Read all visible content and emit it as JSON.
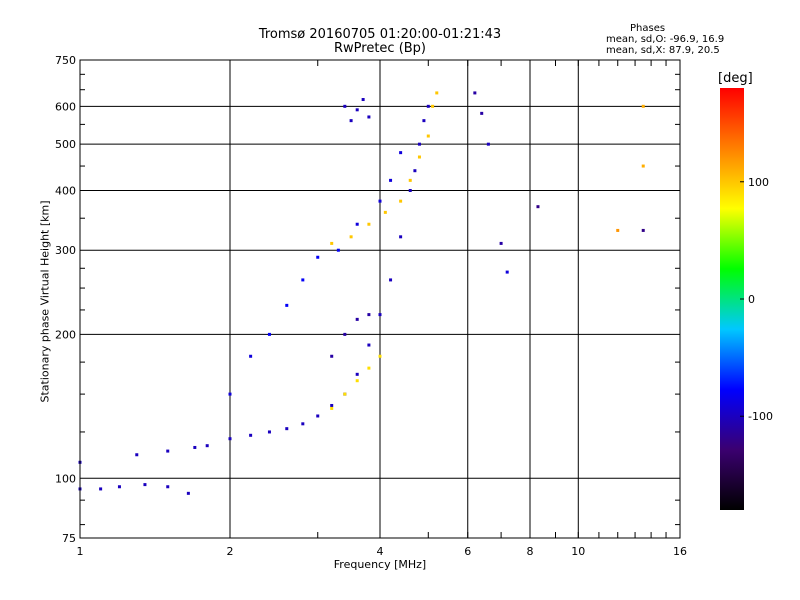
{
  "header": {
    "title_line1": "Tromsø 20160705 01:20:00-01:21:43",
    "title_line2": "RwPretec (Bp)",
    "stats_title": "Phases",
    "stats_line1": "mean, sd,O:  -96.9, 16.9",
    "stats_line2": "mean, sd,X:   87.9, 20.5"
  },
  "colorbar": {
    "unit": "[deg]",
    "ticks": [
      "100",
      "0",
      "-100"
    ],
    "tick_values": [
      100,
      0,
      -100
    ],
    "range": [
      -180,
      180
    ],
    "stops": [
      "#000000",
      "#3b0070",
      "#0000ff",
      "#00c8ff",
      "#00ff00",
      "#ffff00",
      "#ff8000",
      "#ff0000"
    ]
  },
  "chart_data": {
    "type": "scatter",
    "xlabel": "Frequency [MHz]",
    "ylabel": "Stationary phase Virtual Height [km]",
    "xscale": "log",
    "yscale": "log",
    "xlim": [
      1,
      16
    ],
    "ylim": [
      75,
      750
    ],
    "xticks": [
      1,
      2,
      4,
      6,
      8,
      10,
      16
    ],
    "yticks": [
      75,
      100,
      200,
      300,
      400,
      500,
      600,
      750
    ],
    "grid": true,
    "series": [
      {
        "color_by": "phase",
        "points": [
          [
            1.0,
            95,
            -100
          ],
          [
            1.1,
            95,
            -100
          ],
          [
            1.2,
            96,
            -100
          ],
          [
            1.35,
            97,
            -100
          ],
          [
            1.5,
            96,
            -100
          ],
          [
            1.65,
            93,
            -100
          ],
          [
            1.0,
            108,
            -100
          ],
          [
            1.3,
            112,
            -100
          ],
          [
            1.5,
            114,
            -100
          ],
          [
            1.7,
            116,
            -100
          ],
          [
            1.8,
            117,
            -100
          ],
          [
            2.0,
            121,
            -100
          ],
          [
            2.2,
            123,
            -100
          ],
          [
            2.4,
            125,
            -100
          ],
          [
            2.6,
            127,
            -100
          ],
          [
            2.8,
            130,
            -100
          ],
          [
            3.0,
            135,
            -100
          ],
          [
            3.2,
            142,
            -100
          ],
          [
            3.4,
            150,
            -100
          ],
          [
            3.6,
            165,
            -100
          ],
          [
            3.8,
            190,
            -100
          ],
          [
            4.0,
            220,
            -100
          ],
          [
            4.2,
            260,
            -100
          ],
          [
            4.4,
            320,
            -100
          ],
          [
            4.6,
            400,
            -100
          ],
          [
            4.7,
            440,
            -100
          ],
          [
            4.8,
            500,
            -100
          ],
          [
            4.9,
            560,
            -100
          ],
          [
            5.0,
            600,
            -100
          ],
          [
            2.0,
            150,
            -90
          ],
          [
            2.2,
            180,
            -90
          ],
          [
            2.4,
            200,
            -80
          ],
          [
            2.6,
            230,
            -80
          ],
          [
            2.8,
            260,
            -80
          ],
          [
            3.0,
            290,
            -80
          ],
          [
            3.3,
            300,
            -80
          ],
          [
            3.6,
            340,
            -90
          ],
          [
            4.0,
            380,
            -90
          ],
          [
            4.2,
            420,
            -90
          ],
          [
            4.4,
            480,
            -90
          ],
          [
            3.5,
            560,
            -100
          ],
          [
            3.6,
            590,
            -100
          ],
          [
            3.7,
            620,
            -100
          ],
          [
            3.8,
            570,
            -100
          ],
          [
            3.4,
            600,
            -100
          ],
          [
            3.2,
            310,
            100
          ],
          [
            3.5,
            320,
            100
          ],
          [
            3.8,
            340,
            100
          ],
          [
            4.1,
            360,
            100
          ],
          [
            4.4,
            380,
            100
          ],
          [
            4.6,
            420,
            100
          ],
          [
            4.8,
            470,
            100
          ],
          [
            5.0,
            520,
            100
          ],
          [
            5.1,
            600,
            100
          ],
          [
            5.2,
            640,
            100
          ],
          [
            3.2,
            140,
            90
          ],
          [
            3.4,
            150,
            90
          ],
          [
            3.6,
            160,
            90
          ],
          [
            3.8,
            170,
            90
          ],
          [
            4.0,
            180,
            90
          ],
          [
            3.2,
            180,
            -110
          ],
          [
            3.4,
            200,
            -110
          ],
          [
            3.6,
            215,
            -110
          ],
          [
            3.8,
            220,
            -110
          ],
          [
            6.2,
            640,
            -110
          ],
          [
            6.4,
            580,
            -110
          ],
          [
            6.6,
            500,
            -100
          ],
          [
            7.0,
            310,
            -110
          ],
          [
            7.2,
            270,
            -90
          ],
          [
            8.3,
            370,
            -120
          ],
          [
            12.0,
            330,
            120
          ],
          [
            13.5,
            330,
            -120
          ],
          [
            13.5,
            600,
            110
          ],
          [
            13.5,
            450,
            110
          ]
        ]
      }
    ]
  }
}
